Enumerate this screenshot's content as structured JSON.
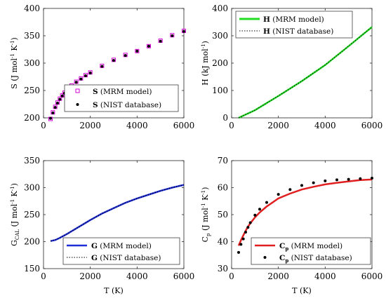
{
  "chart_data": [
    {
      "type": "scatter",
      "panel": "top-left",
      "xlabel": "",
      "ylabel": "S (J mol⁻¹ K⁻¹)",
      "xlim": [
        0,
        6000
      ],
      "ylim": [
        200,
        400
      ],
      "xticks": [
        0,
        2000,
        4000,
        6000
      ],
      "yticks": [
        200,
        250,
        300,
        350,
        400
      ],
      "legend_position": "bottom-right",
      "x": [
        300,
        400,
        500,
        600,
        700,
        800,
        900,
        1000,
        1200,
        1400,
        1600,
        1800,
        2000,
        2500,
        3000,
        3500,
        4000,
        4500,
        5000,
        5500,
        6000
      ],
      "series": [
        {
          "name": "S (MRM model)",
          "marker": "open-square",
          "color": "#d400d4",
          "values": [
            198,
            210,
            220,
            228,
            235,
            241,
            246,
            251,
            259,
            266,
            272,
            278,
            283,
            295,
            306,
            315,
            322,
            331,
            341,
            351,
            359
          ]
        },
        {
          "name": "S (NIST database)",
          "marker": "dot",
          "color": "#000000",
          "values": [
            199,
            209,
            219,
            227,
            234,
            240,
            245,
            250,
            258,
            265,
            271,
            277,
            282,
            294,
            305,
            314,
            322,
            331,
            340,
            350,
            358
          ]
        }
      ]
    },
    {
      "type": "line",
      "panel": "top-right",
      "xlabel": "",
      "ylabel": "H (kJ mol⁻¹)",
      "xlim": [
        0,
        6000
      ],
      "ylim": [
        0,
        400
      ],
      "xticks": [
        0,
        2000,
        4000,
        6000
      ],
      "yticks": [
        0,
        100,
        200,
        300,
        400
      ],
      "legend_position": "top-left",
      "x": [
        300,
        1000,
        2000,
        3000,
        4000,
        5000,
        6000
      ],
      "series": [
        {
          "name": "H (MRM model)",
          "style": "solid",
          "color": "#22dd22",
          "values": [
            0,
            28,
            80,
            134,
            193,
            262,
            332
          ]
        },
        {
          "name": "H (NIST database)",
          "style": "dotted",
          "color": "#000000",
          "values": [
            0,
            28,
            80,
            134,
            193,
            262,
            332
          ]
        }
      ]
    },
    {
      "type": "line",
      "panel": "bottom-left",
      "xlabel": "T (K)",
      "ylabel": "G_CAL (J mol⁻¹ K⁻¹)",
      "xlim": [
        0,
        6000
      ],
      "ylim": [
        150,
        350
      ],
      "xticks": [
        0,
        2000,
        4000,
        6000
      ],
      "yticks": [
        150,
        200,
        250,
        300,
        350
      ],
      "legend_position": "bottom-right",
      "x": [
        300,
        500,
        700,
        1000,
        1500,
        2000,
        2500,
        3000,
        3500,
        4000,
        4500,
        5000,
        5500,
        6000
      ],
      "series": [
        {
          "name": "G (MRM model)",
          "style": "solid",
          "color": "#1f2fd6",
          "values": [
            201,
            203,
            207,
            214,
            227,
            240,
            252,
            262,
            272,
            280,
            287,
            294,
            300,
            305
          ]
        },
        {
          "name": "G (NIST database)",
          "style": "dotted",
          "color": "#000000",
          "values": [
            201,
            203,
            207,
            214,
            227,
            240,
            252,
            262,
            272,
            280,
            287,
            294,
            300,
            305
          ]
        }
      ]
    },
    {
      "type": "line",
      "panel": "bottom-right",
      "xlabel": "T (K)",
      "ylabel": "Cp (J mol⁻¹ K⁻¹)",
      "xlim": [
        0,
        6000
      ],
      "ylim": [
        30,
        70
      ],
      "xticks": [
        0,
        2000,
        4000,
        6000
      ],
      "yticks": [
        30,
        40,
        50,
        60,
        70
      ],
      "legend_position": "bottom-right",
      "x": [
        300,
        400,
        500,
        600,
        700,
        800,
        1000,
        1200,
        1500,
        2000,
        2500,
        3000,
        3500,
        4000,
        4500,
        5000,
        5500,
        6000
      ],
      "series": [
        {
          "name": "Cp (MRM model)",
          "style": "solid",
          "color": "#e02020",
          "values": [
            38.5,
            40.5,
            42.3,
            44.0,
            45.5,
            46.8,
            49.0,
            50.8,
            53.0,
            56.0,
            57.8,
            59.3,
            60.3,
            61.2,
            61.8,
            62.3,
            62.8,
            63.0
          ]
        },
        {
          "name": "Cp (NIST database)",
          "marker": "dot",
          "color": "#000000",
          "values": [
            36,
            39,
            41,
            43.5,
            45.3,
            47,
            49.8,
            52,
            54.5,
            57.5,
            59.3,
            60.8,
            61.8,
            62.5,
            62.9,
            63.1,
            63.3,
            63.5
          ]
        }
      ]
    }
  ],
  "legends": {
    "tl": [
      {
        "sym": "S",
        "txt": " (MRM model)"
      },
      {
        "sym": "S",
        "txt": " (NIST database)"
      }
    ],
    "tr": [
      {
        "sym": "H",
        "txt": " (MRM model)"
      },
      {
        "sym": "H",
        "txt": " (NIST database)"
      }
    ],
    "bl": [
      {
        "sym": "G",
        "txt": " (MRM model)"
      },
      {
        "sym": "G",
        "txt": " (NIST database)"
      }
    ],
    "br": [
      {
        "sym": "C",
        "sub": "p",
        "txt": " (MRM model)"
      },
      {
        "sym": "C",
        "sub": "p",
        "txt": " (NIST database)"
      }
    ]
  },
  "ylabels": {
    "tl": {
      "main": "S (J mol",
      "sup1": "-1",
      "mid": " K",
      "sup2": "-1",
      "end": ")"
    },
    "tr": {
      "main": "H (kJ mol",
      "sup1": "-1",
      "end": ")"
    },
    "bl": {
      "pre": "G",
      "sub": "CAL",
      "main": " (J mol",
      "sup1": "-1",
      "mid": " K",
      "sup2": "-1",
      "end": ")"
    },
    "br": {
      "pre": "C",
      "sub": "p",
      "main": " (J mol",
      "sup1": "-1",
      "mid": " K",
      "sup2": "-1",
      "end": ")"
    }
  },
  "xlabels": {
    "bl": "T (K)",
    "br": "T (K)"
  }
}
